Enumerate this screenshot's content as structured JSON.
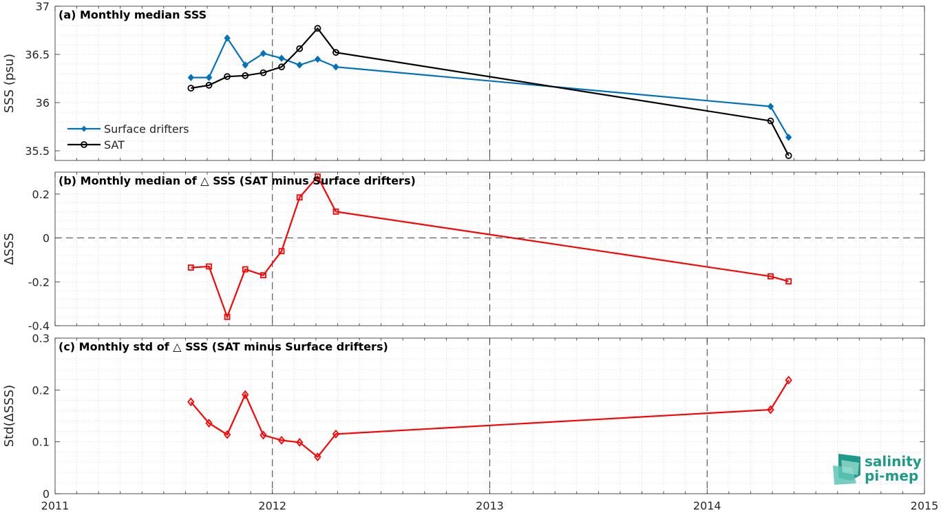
{
  "chart_data": [
    {
      "type": "line",
      "title": "(a) Monthly median SSS",
      "ylabel": "SSS (psu)",
      "xlim": [
        2011,
        2015
      ],
      "ylim": [
        35.4,
        37
      ],
      "yticks": [
        35.5,
        36,
        36.5,
        37
      ],
      "ytick_labels": [
        "35.5",
        "36",
        "36.5",
        "37"
      ],
      "grid": "minor dotted",
      "legend_position": "bottom-left",
      "series": [
        {
          "name": "Surface drifters",
          "color": "#0072BD",
          "marker": "filled-diamond",
          "x": [
            2011.625,
            2011.708,
            2011.792,
            2011.875,
            2011.958,
            2012.042,
            2012.125,
            2012.208,
            2012.292,
            2014.292,
            2014.375
          ],
          "y": [
            36.26,
            36.26,
            36.67,
            36.39,
            36.51,
            36.46,
            36.39,
            36.45,
            36.37,
            35.96,
            35.64
          ]
        },
        {
          "name": "SAT",
          "color": "#000000",
          "marker": "circle",
          "x": [
            2011.625,
            2011.708,
            2011.792,
            2011.875,
            2011.958,
            2012.042,
            2012.125,
            2012.208,
            2012.292,
            2014.292,
            2014.375
          ],
          "y": [
            36.15,
            36.18,
            36.27,
            36.28,
            36.31,
            36.37,
            36.56,
            36.77,
            36.52,
            35.81,
            35.45
          ]
        }
      ]
    },
    {
      "type": "line",
      "title": "(b) Monthly median of △ SSS (SAT minus Surface drifters)",
      "ylabel": "ΔSSS",
      "xlim": [
        2011,
        2015
      ],
      "ylim": [
        -0.4,
        0.3
      ],
      "yticks": [
        -0.4,
        -0.2,
        0,
        0.2
      ],
      "ytick_labels": [
        "-0.4",
        "-0.2",
        "0",
        "0.2"
      ],
      "zero_line": "dashed",
      "grid": "minor dotted",
      "series": [
        {
          "color": "#FF0000",
          "marker": "square",
          "x": [
            2011.625,
            2011.708,
            2011.792,
            2011.875,
            2011.958,
            2012.042,
            2012.125,
            2012.208,
            2012.292,
            2014.292,
            2014.375
          ],
          "y": [
            -0.135,
            -0.13,
            -0.36,
            -0.143,
            -0.17,
            -0.06,
            0.185,
            0.28,
            0.12,
            -0.175,
            -0.198
          ]
        }
      ]
    },
    {
      "type": "line",
      "title": "(c) Monthly std of △ SSS (SAT minus Surface drifters)",
      "ylabel": "Std(ΔSSS)",
      "xlim": [
        2011,
        2015
      ],
      "ylim": [
        0,
        0.3
      ],
      "yticks": [
        0,
        0.1,
        0.2,
        0.3
      ],
      "ytick_labels": [
        "0",
        "0.1",
        "0.2",
        "0.3"
      ],
      "grid": "minor dotted",
      "series": [
        {
          "color": "#FF0000",
          "marker": "diamond",
          "x": [
            2011.625,
            2011.708,
            2011.792,
            2011.875,
            2011.958,
            2012.042,
            2012.125,
            2012.208,
            2012.292,
            2014.292,
            2014.375
          ],
          "y": [
            0.177,
            0.136,
            0.114,
            0.191,
            0.113,
            0.103,
            0.099,
            0.071,
            0.115,
            0.162,
            0.219
          ]
        }
      ]
    }
  ],
  "xaxis": {
    "ticks": [
      2011,
      2012,
      2013,
      2014,
      2015
    ],
    "tick_labels": [
      "2011",
      "2012",
      "2013",
      "2014",
      "2015"
    ],
    "major_vlines": "dashed"
  },
  "logo": {
    "line1": "salinity",
    "line2": "pi-mep",
    "color": "#1f9a8a"
  }
}
